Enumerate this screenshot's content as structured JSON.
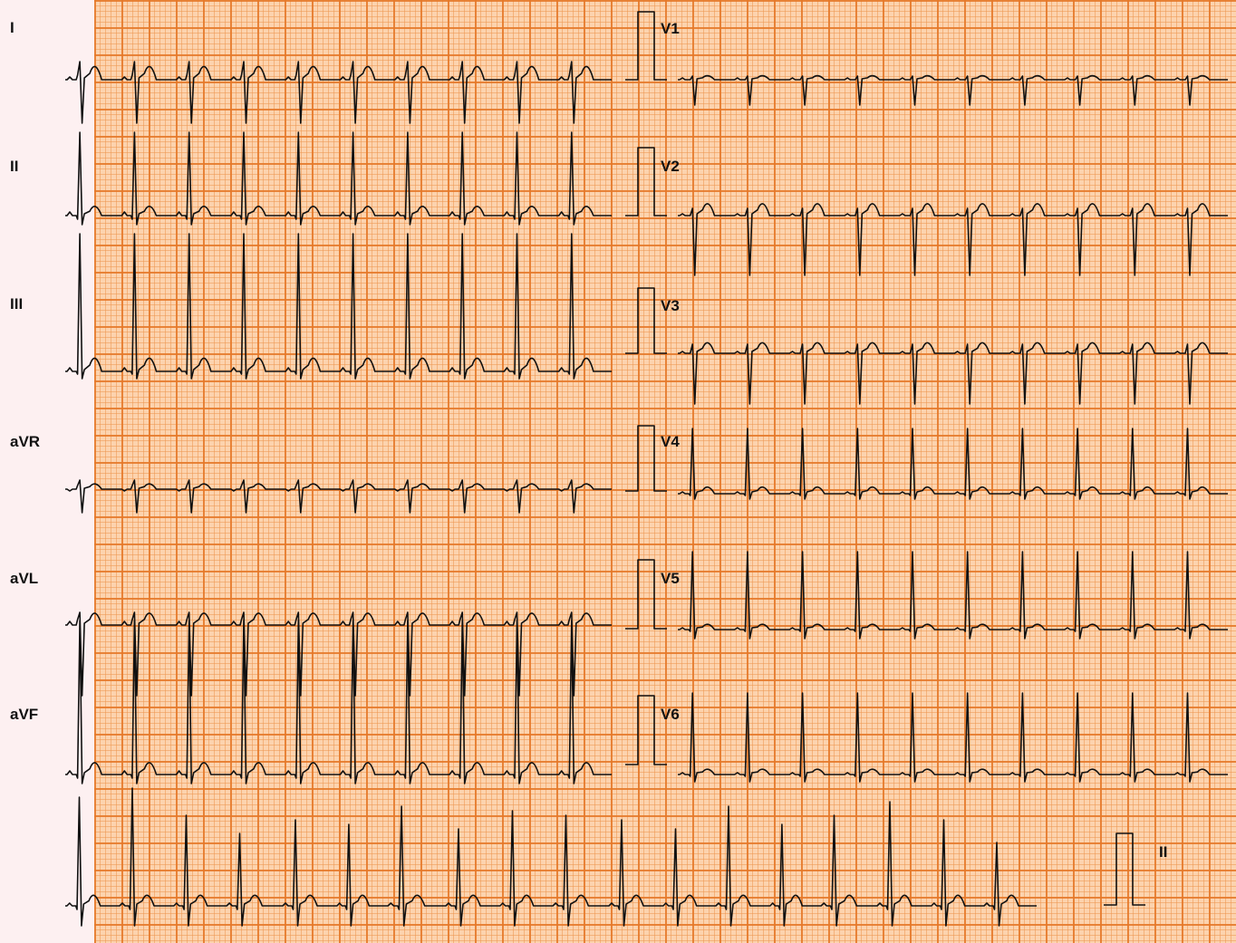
{
  "leads": {
    "I": "I",
    "II": "II",
    "III": "III",
    "aVR": "aVR",
    "aVL": "aVL",
    "aVF": "aVF",
    "V1": "V1",
    "V2": "V2",
    "V3": "V3",
    "V4": "V4",
    "V5": "V5",
    "V6": "V6",
    "rhythm": "II"
  },
  "colors": {
    "paper": "#fcd3ae",
    "grid_major": "#e57828",
    "grid_minor": "#ec9650",
    "trace": "#111111",
    "margin": "#fdf0f1"
  }
}
